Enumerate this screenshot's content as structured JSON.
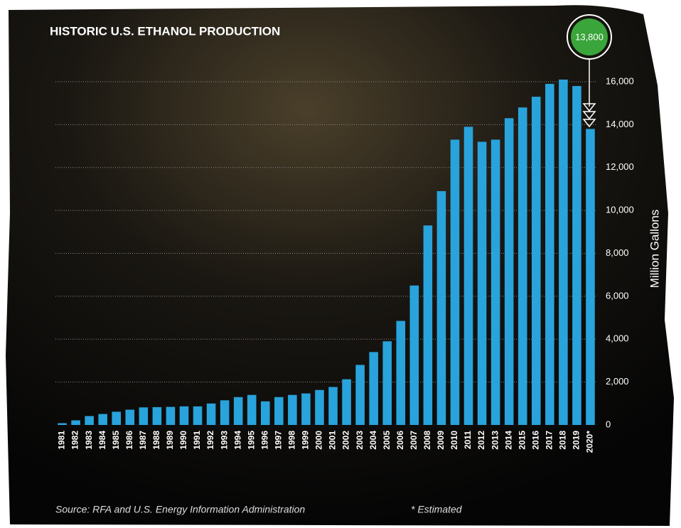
{
  "chart_data": {
    "type": "bar",
    "title": "HISTORIC U.S. ETHANOL PRODUCTION",
    "y_axis_label": "Million Gallons",
    "annotation": "13,800",
    "source": "Source:  RFA and U.S. Energy Information Administration",
    "note": "* Estimated",
    "categories": [
      "1981",
      "1982",
      "1983",
      "1984",
      "1985",
      "1986",
      "1987",
      "1988",
      "1989",
      "1990",
      "1991",
      "1992",
      "1993",
      "1994",
      "1995",
      "1996",
      "1997",
      "1998",
      "1999",
      "2000",
      "2001",
      "2002",
      "2003",
      "2004",
      "2005",
      "2006",
      "2007",
      "2008",
      "2009",
      "2010",
      "2011",
      "2012",
      "2013",
      "2014",
      "2015",
      "2016",
      "2017",
      "2018",
      "2019",
      "2020*"
    ],
    "values": [
      83,
      215,
      415,
      510,
      617,
      712,
      819,
      831,
      843,
      866,
      866,
      1000,
      1150,
      1300,
      1400,
      1100,
      1300,
      1400,
      1470,
      1630,
      1770,
      2130,
      2800,
      3400,
      3900,
      4850,
      6500,
      9300,
      10900,
      13300,
      13900,
      13200,
      13300,
      14300,
      14800,
      15300,
      15900,
      16100,
      15800,
      13800
    ],
    "color": "#29a3dc",
    "ylim": [
      0,
      16000
    ],
    "yticks": [
      0,
      {
        "value": 2000,
        "label": "2,000"
      },
      {
        "value": 4000,
        "label": "4,000"
      },
      {
        "value": 6000,
        "label": "6,000"
      },
      {
        "value": 8000,
        "label": "8,000"
      },
      {
        "value": 10000,
        "label": "10,000"
      },
      {
        "value": 12000,
        "label": "12,000"
      },
      {
        "value": 14000,
        "label": "14,000"
      },
      {
        "value": 16000,
        "label": "16,000"
      }
    ],
    "grid": true
  }
}
